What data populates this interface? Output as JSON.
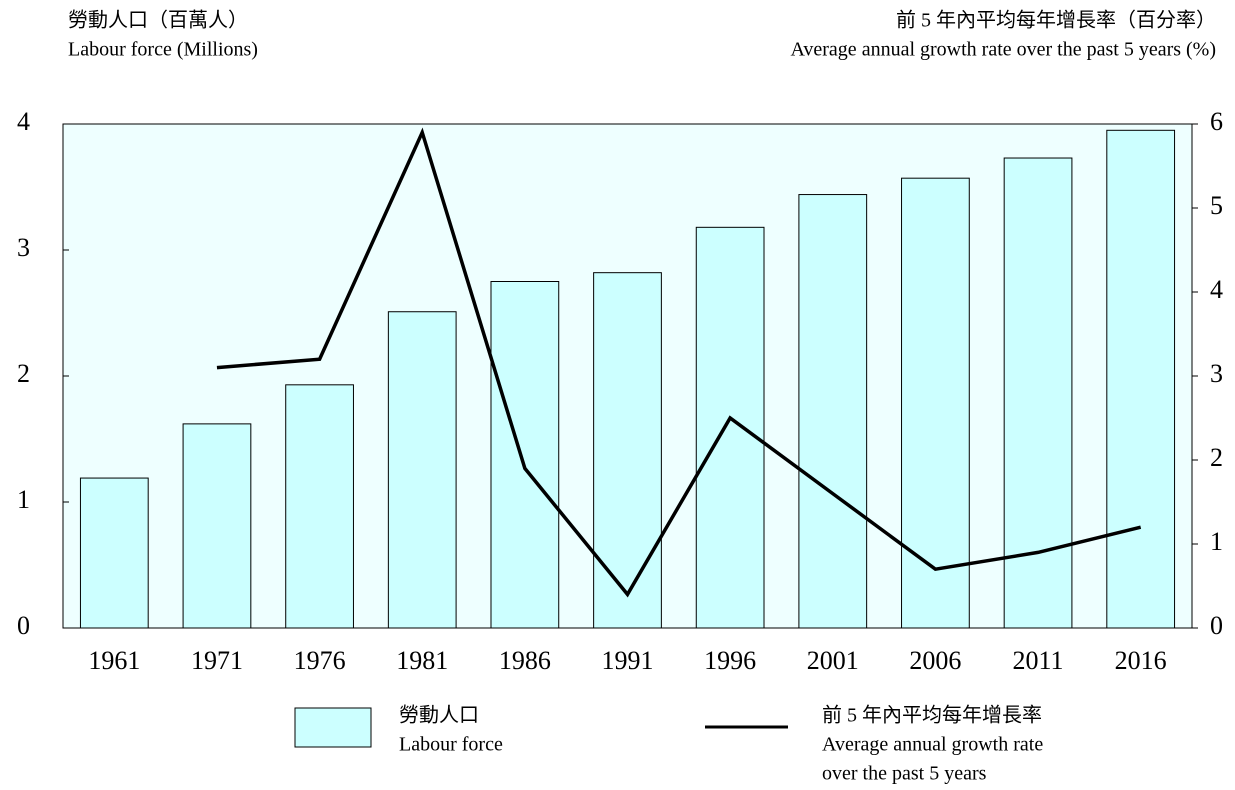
{
  "chart_data": {
    "type": "bar",
    "y_label": [
      "勞動人口（百萬人）",
      "Labour force (Millions)"
    ],
    "y2_label": [
      "前 5 年內平均每年增長率（百分率）",
      "Average annual growth rate over the past 5 years (%)"
    ],
    "categories": [
      "1961",
      "1971",
      "1976",
      "1981",
      "1986",
      "1991",
      "1996",
      "2001",
      "2006",
      "2011",
      "2016"
    ],
    "series": [
      {
        "name": [
          "勞動人口",
          "Labour force"
        ],
        "type": "bar",
        "color": "#ccffff",
        "values": [
          1.19,
          1.62,
          1.93,
          2.51,
          2.75,
          2.82,
          3.18,
          3.44,
          3.57,
          3.73,
          3.95
        ]
      },
      {
        "name": [
          "前 5 年內平均每年增長率",
          "Average annual growth rate",
          "over the past 5 years"
        ],
        "type": "line",
        "color": "#000000",
        "axis": "y2",
        "values": [
          null,
          3.1,
          3.2,
          5.9,
          1.9,
          0.4,
          2.5,
          1.6,
          0.7,
          0.9,
          1.2
        ]
      }
    ],
    "ylim": [
      0,
      4
    ],
    "yticks": [
      0,
      1,
      2,
      3,
      4
    ],
    "y2lim": [
      0,
      6
    ],
    "y2ticks": [
      0,
      1,
      2,
      3,
      4,
      5,
      6
    ],
    "grid": false,
    "plot_background": "#eeffff"
  }
}
